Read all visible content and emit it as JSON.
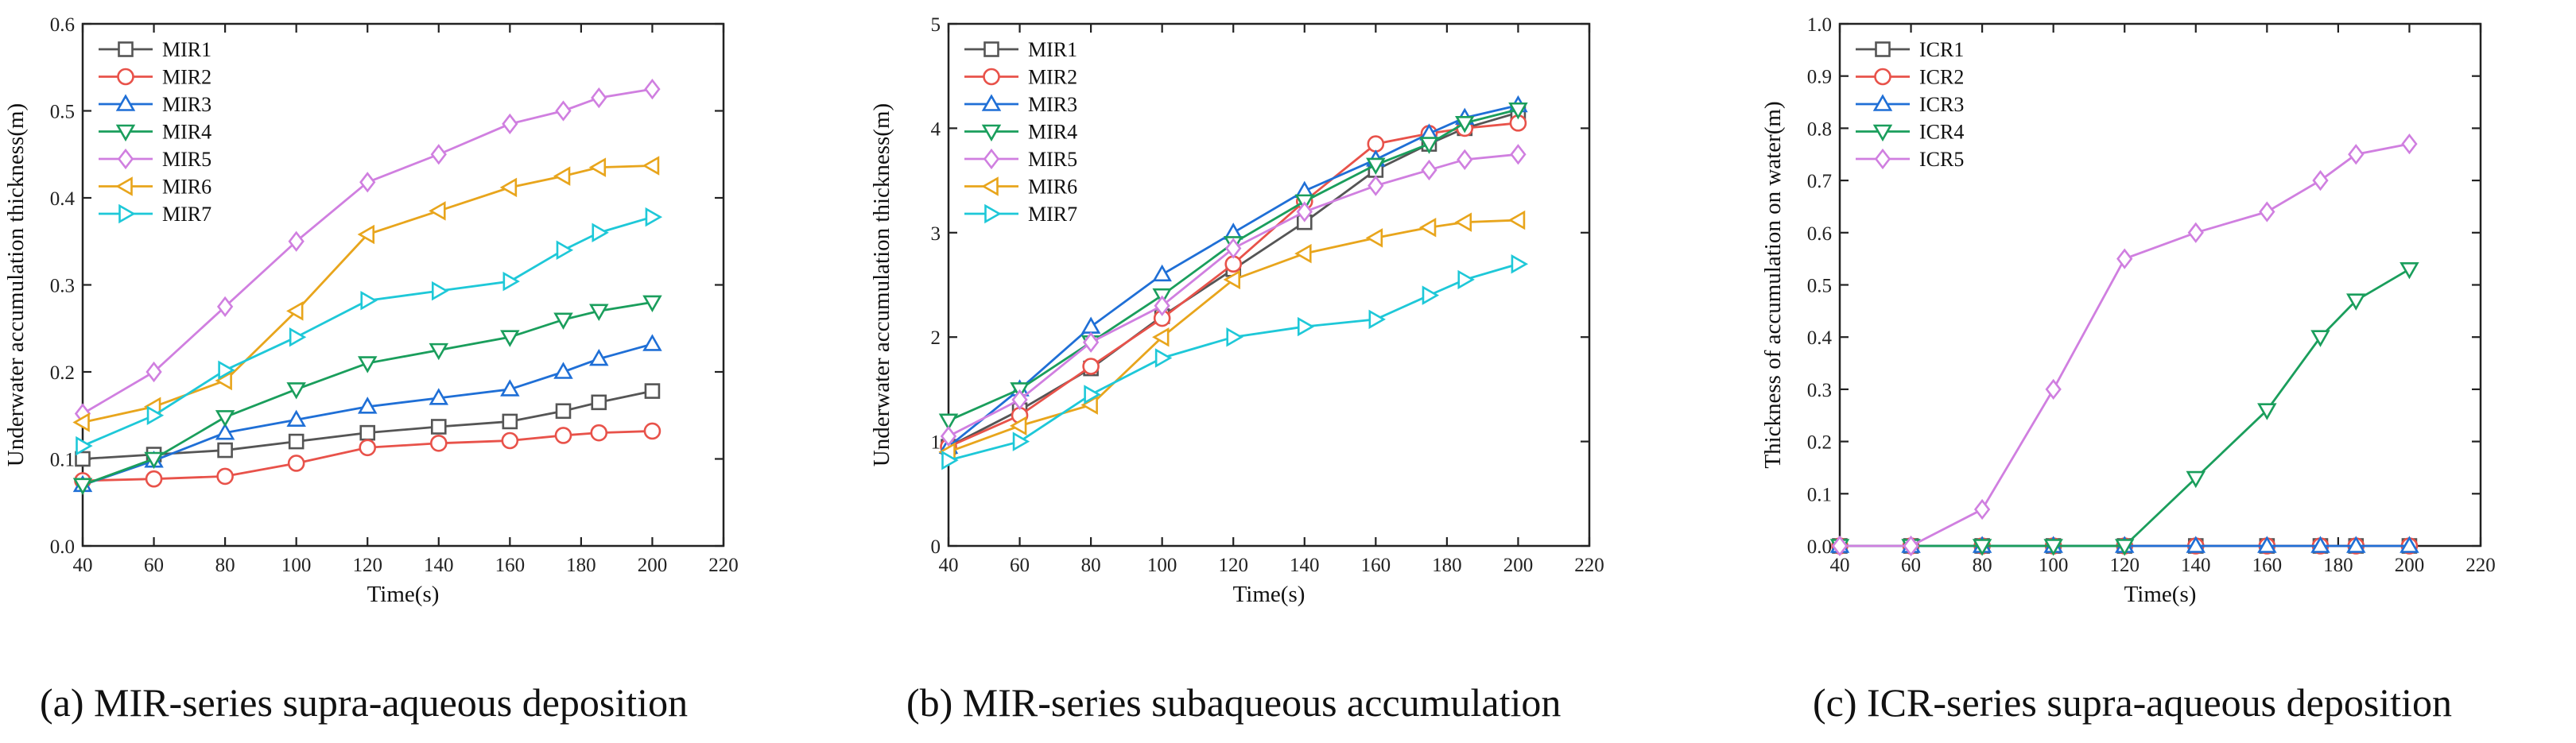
{
  "chart_data": [
    {
      "id": "a",
      "type": "line",
      "caption": "(a) MIR-series supra-aqueous deposition",
      "xlabel": "Time(s)",
      "ylabel": "Underwater accumulation thickness(m)",
      "xlim": [
        40,
        220
      ],
      "ylim": [
        0.0,
        0.6
      ],
      "xticks": [
        40,
        60,
        80,
        100,
        120,
        140,
        160,
        180,
        200,
        220
      ],
      "yticks": [
        0.0,
        0.1,
        0.2,
        0.3,
        0.4,
        0.5,
        0.6
      ],
      "ytick_labels": [
        "0.0",
        "0.1",
        "0.2",
        "0.3",
        "0.4",
        "0.5",
        "0.6"
      ],
      "legend_position": "top-left",
      "x": [
        40,
        60,
        80,
        100,
        120,
        140,
        160,
        175,
        185,
        200
      ],
      "series": [
        {
          "name": "MIR1",
          "color": "#555555",
          "marker": "square",
          "values": [
            0.1,
            0.105,
            0.11,
            0.12,
            0.13,
            0.137,
            0.143,
            0.155,
            0.165,
            0.178
          ]
        },
        {
          "name": "MIR2",
          "color": "#e8524a",
          "marker": "circle",
          "values": [
            0.075,
            0.077,
            0.08,
            0.095,
            0.113,
            0.118,
            0.121,
            0.127,
            0.13,
            0.132
          ]
        },
        {
          "name": "MIR3",
          "color": "#1f6fd6",
          "marker": "triangle-up",
          "values": [
            0.07,
            0.098,
            0.13,
            0.145,
            0.16,
            0.17,
            0.18,
            0.2,
            0.215,
            0.232
          ]
        },
        {
          "name": "MIR4",
          "color": "#1a9e5c",
          "marker": "triangle-down",
          "values": [
            0.07,
            0.1,
            0.148,
            0.18,
            0.21,
            0.225,
            0.24,
            0.26,
            0.27,
            0.28
          ]
        },
        {
          "name": "MIR5",
          "color": "#d07fe0",
          "marker": "diamond",
          "values": [
            0.152,
            0.2,
            0.275,
            0.35,
            0.418,
            0.45,
            0.485,
            0.5,
            0.515,
            0.525
          ]
        },
        {
          "name": "MIR6",
          "color": "#e8a51c",
          "marker": "triangle-left",
          "values": [
            0.142,
            0.16,
            0.19,
            0.27,
            0.358,
            0.385,
            0.412,
            0.425,
            0.435,
            0.437
          ]
        },
        {
          "name": "MIR7",
          "color": "#1ec8d8",
          "marker": "triangle-right",
          "values": [
            0.115,
            0.15,
            0.202,
            0.24,
            0.282,
            0.293,
            0.304,
            0.34,
            0.36,
            0.378
          ]
        }
      ]
    },
    {
      "id": "b",
      "type": "line",
      "caption": "(b) MIR-series subaqueous accumulation",
      "xlabel": "Time(s)",
      "ylabel": "Underwater accumulation thickness(m)",
      "xlim": [
        40,
        220
      ],
      "ylim": [
        0,
        5
      ],
      "xticks": [
        40,
        60,
        80,
        100,
        120,
        140,
        160,
        180,
        200,
        220
      ],
      "yticks": [
        0,
        1,
        2,
        3,
        4,
        5
      ],
      "ytick_labels": [
        "0",
        "1",
        "2",
        "3",
        "4",
        "5"
      ],
      "legend_position": "top-left",
      "x": [
        40,
        60,
        80,
        100,
        120,
        140,
        160,
        175,
        185,
        200
      ],
      "series": [
        {
          "name": "MIR1",
          "color": "#555555",
          "marker": "square",
          "values": [
            0.95,
            1.3,
            1.7,
            2.2,
            2.65,
            3.1,
            3.6,
            3.85,
            4.0,
            4.15
          ]
        },
        {
          "name": "MIR2",
          "color": "#e8524a",
          "marker": "circle",
          "values": [
            0.95,
            1.25,
            1.72,
            2.18,
            2.7,
            3.3,
            3.85,
            3.95,
            4.0,
            4.05
          ]
        },
        {
          "name": "MIR3",
          "color": "#1f6fd6",
          "marker": "triangle-up",
          "values": [
            0.95,
            1.5,
            2.1,
            2.6,
            3.0,
            3.4,
            3.7,
            3.95,
            4.1,
            4.22
          ]
        },
        {
          "name": "MIR4",
          "color": "#1a9e5c",
          "marker": "triangle-down",
          "values": [
            1.2,
            1.5,
            1.95,
            2.4,
            2.9,
            3.3,
            3.65,
            3.85,
            4.05,
            4.18
          ]
        },
        {
          "name": "MIR5",
          "color": "#d07fe0",
          "marker": "diamond",
          "values": [
            1.05,
            1.4,
            1.95,
            2.3,
            2.85,
            3.2,
            3.45,
            3.6,
            3.7,
            3.75
          ]
        },
        {
          "name": "MIR6",
          "color": "#e8a51c",
          "marker": "triangle-left",
          "values": [
            0.9,
            1.15,
            1.35,
            2.0,
            2.55,
            2.8,
            2.95,
            3.05,
            3.1,
            3.12
          ]
        },
        {
          "name": "MIR7",
          "color": "#1ec8d8",
          "marker": "triangle-right",
          "values": [
            0.82,
            1.0,
            1.45,
            1.8,
            2.0,
            2.1,
            2.17,
            2.4,
            2.55,
            2.7
          ]
        }
      ]
    },
    {
      "id": "c",
      "type": "line",
      "caption": "(c) ICR-series supra-aqueous deposition",
      "xlabel": "Time(s)",
      "ylabel": "Thickness of accumulation on water(m)",
      "xlim": [
        40,
        220
      ],
      "ylim": [
        0.0,
        1.0
      ],
      "xticks": [
        40,
        60,
        80,
        100,
        120,
        140,
        160,
        180,
        200,
        220
      ],
      "yticks": [
        0.0,
        0.1,
        0.2,
        0.3,
        0.4,
        0.5,
        0.6,
        0.7,
        0.8,
        0.9,
        1.0
      ],
      "ytick_labels": [
        "0.0",
        "0.1",
        "0.2",
        "0.3",
        "0.4",
        "0.5",
        "0.6",
        "0.7",
        "0.8",
        "0.9",
        "1.0"
      ],
      "legend_position": "top-left",
      "x": [
        40,
        60,
        80,
        100,
        120,
        140,
        160,
        175,
        185,
        200
      ],
      "series": [
        {
          "name": "ICR1",
          "color": "#555555",
          "marker": "square",
          "values": [
            0,
            0,
            0,
            0,
            0,
            0,
            0,
            0,
            0,
            0
          ]
        },
        {
          "name": "ICR2",
          "color": "#e8524a",
          "marker": "circle",
          "values": [
            0,
            0,
            0,
            0,
            0,
            0,
            0,
            0,
            0,
            0
          ]
        },
        {
          "name": "ICR3",
          "color": "#1f6fd6",
          "marker": "triangle-up",
          "values": [
            0,
            0,
            0,
            0,
            0,
            0,
            0,
            0,
            0,
            0
          ]
        },
        {
          "name": "ICR4",
          "color": "#1a9e5c",
          "marker": "triangle-down",
          "values": [
            0,
            0,
            0,
            0,
            0,
            0.13,
            0.26,
            0.4,
            0.47,
            0.53
          ]
        },
        {
          "name": "ICR5",
          "color": "#d07fe0",
          "marker": "diamond",
          "values": [
            0,
            0,
            0.07,
            0.3,
            0.55,
            0.6,
            0.64,
            0.7,
            0.75,
            0.77
          ]
        }
      ]
    }
  ]
}
